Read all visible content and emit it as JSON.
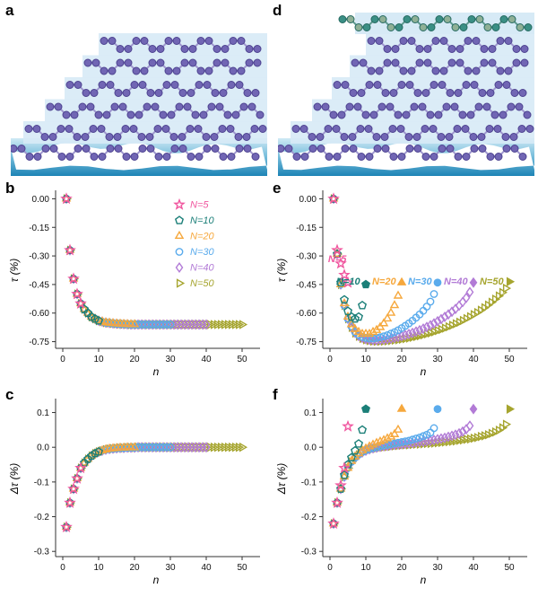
{
  "figure": {
    "panels": {
      "a": "a",
      "b": "b",
      "c": "c",
      "d": "d",
      "e": "e",
      "f": "f"
    }
  },
  "colors": {
    "axis": "#333333",
    "tick_text": "#111111",
    "slab": "#d7eaf6",
    "atom": "#7166b4",
    "atom_stroke": "#4d4390",
    "bond": "#9f97cf",
    "hetero_atom": "#3b8f85",
    "hetero_atom2": "#8fb096",
    "hetero_stroke": "#256a61",
    "hetero_bond": "#5f9a90",
    "sea_top": "#cfe9f5",
    "sea_mid": "#7cc0dd",
    "sea_bottom": "#1d84b6",
    "substrate": "#ffffff"
  },
  "series_meta": [
    {
      "key": "N5",
      "label": "N=5",
      "color": "#f0569f",
      "marker": "star",
      "N": 5
    },
    {
      "key": "N10",
      "label": "N=10",
      "color": "#1b7f78",
      "marker": "pentagon",
      "N": 10
    },
    {
      "key": "N20",
      "label": "N=20",
      "color": "#f6a83d",
      "marker": "triangle-up",
      "N": 20
    },
    {
      "key": "N30",
      "label": "N=30",
      "color": "#5aabec",
      "marker": "circle",
      "N": 30
    },
    {
      "key": "N40",
      "label": "N=40",
      "color": "#b27bd6",
      "marker": "diamond",
      "N": 40
    },
    {
      "key": "N50",
      "label": "N=50",
      "color": "#a6a52f",
      "marker": "triangle-right",
      "N": 50
    }
  ],
  "chart_data": [
    {
      "id": "chart-b",
      "panel": "b",
      "type": "scatter",
      "xlabel": "n",
      "ylabel": "τ (%)",
      "xlim": [
        -2,
        54
      ],
      "ylim": [
        -0.785,
        0.035
      ],
      "xticks": [
        0,
        10,
        20,
        30,
        40,
        50
      ],
      "xtick_labels": [
        "0",
        "10",
        "20",
        "30",
        "40",
        "50"
      ],
      "yticks": [
        0,
        -0.15,
        -0.3,
        -0.45,
        -0.6,
        -0.75
      ],
      "ytick_labels": [
        "0.00",
        "-0.15",
        "-0.30",
        "-0.45",
        "-0.60",
        "-0.75"
      ],
      "legend": true,
      "mode": "shared",
      "x_start": 1,
      "x_step": 1,
      "shared_y": [
        0,
        -0.27,
        -0.42,
        -0.5,
        -0.55,
        -0.58,
        -0.6,
        -0.62,
        -0.63,
        -0.64,
        -0.645,
        -0.65,
        -0.652,
        -0.654,
        -0.656,
        -0.657,
        -0.658,
        -0.659,
        -0.66,
        -0.66,
        -0.66,
        -0.66,
        -0.66,
        -0.66,
        -0.66,
        -0.66,
        -0.66,
        -0.66,
        -0.66,
        -0.66,
        -0.66,
        -0.66,
        -0.66,
        -0.66,
        -0.66,
        -0.66,
        -0.66,
        -0.66,
        -0.66,
        -0.66,
        -0.66,
        -0.66,
        -0.66,
        -0.66,
        -0.66,
        -0.66,
        -0.66,
        -0.66,
        -0.66,
        -0.66
      ],
      "series": [
        {
          "key": "N5",
          "last_filled": false
        },
        {
          "key": "N10",
          "last_filled": false
        },
        {
          "key": "N20",
          "last_filled": false
        },
        {
          "key": "N30",
          "last_filled": false
        },
        {
          "key": "N40",
          "last_filled": false
        },
        {
          "key": "N50",
          "last_filled": false
        }
      ]
    },
    {
      "id": "chart-e",
      "panel": "e",
      "type": "scatter",
      "xlabel": "n",
      "ylabel": "τ (%)",
      "xlim": [
        -2,
        54
      ],
      "ylim": [
        -0.785,
        0.035
      ],
      "xticks": [
        0,
        10,
        20,
        30,
        40,
        50
      ],
      "xtick_labels": [
        "0",
        "10",
        "20",
        "30",
        "40",
        "50"
      ],
      "yticks": [
        0,
        -0.15,
        -0.3,
        -0.45,
        -0.6,
        -0.75
      ],
      "ytick_labels": [
        "0.00",
        "-0.15",
        "-0.30",
        "-0.45",
        "-0.60",
        "-0.75"
      ],
      "legend": false,
      "mode": "per",
      "x_start": 1,
      "x_step": 1,
      "labels": [
        {
          "text": "N=5",
          "color": "#f0569f",
          "x": 4.6,
          "y": -0.315
        },
        {
          "text": "N=10",
          "color": "#1b7f78",
          "x": 8.4,
          "y": -0.435
        },
        {
          "text": "N=20",
          "color": "#f6a83d",
          "x": 18.4,
          "y": -0.435
        },
        {
          "text": "N=30",
          "color": "#5aabec",
          "x": 28.4,
          "y": -0.435
        },
        {
          "text": "N=40",
          "color": "#b27bd6",
          "x": 38.4,
          "y": -0.435
        },
        {
          "text": "N=50",
          "color": "#a6a52f",
          "x": 48.4,
          "y": -0.435
        }
      ],
      "series": [
        {
          "key": "N5",
          "last_filled": false,
          "y": [
            0,
            -0.27,
            -0.34,
            -0.4,
            -0.44
          ]
        },
        {
          "key": "N10",
          "last_filled": true,
          "y": [
            0,
            -0.29,
            -0.44,
            -0.53,
            -0.59,
            -0.62,
            -0.63,
            -0.62,
            -0.56,
            -0.45
          ]
        },
        {
          "key": "N20",
          "last_filled": true,
          "y": [
            0,
            -0.29,
            -0.45,
            -0.55,
            -0.62,
            -0.66,
            -0.685,
            -0.7,
            -0.71,
            -0.71,
            -0.71,
            -0.7,
            -0.69,
            -0.675,
            -0.655,
            -0.63,
            -0.6,
            -0.56,
            -0.51,
            -0.44
          ]
        },
        {
          "key": "N30",
          "last_filled": true,
          "y": [
            0,
            -0.29,
            -0.45,
            -0.56,
            -0.63,
            -0.67,
            -0.7,
            -0.715,
            -0.725,
            -0.73,
            -0.733,
            -0.733,
            -0.73,
            -0.727,
            -0.722,
            -0.716,
            -0.708,
            -0.7,
            -0.69,
            -0.679,
            -0.667,
            -0.654,
            -0.64,
            -0.624,
            -0.607,
            -0.588,
            -0.566,
            -0.54,
            -0.5,
            -0.44
          ]
        },
        {
          "key": "N40",
          "last_filled": true,
          "y": [
            0,
            -0.29,
            -0.45,
            -0.56,
            -0.63,
            -0.675,
            -0.703,
            -0.72,
            -0.73,
            -0.737,
            -0.74,
            -0.742,
            -0.742,
            -0.741,
            -0.739,
            -0.737,
            -0.734,
            -0.73,
            -0.726,
            -0.721,
            -0.716,
            -0.71,
            -0.704,
            -0.697,
            -0.69,
            -0.682,
            -0.673,
            -0.664,
            -0.654,
            -0.643,
            -0.632,
            -0.62,
            -0.607,
            -0.593,
            -0.578,
            -0.561,
            -0.542,
            -0.52,
            -0.49,
            -0.44
          ]
        },
        {
          "key": "N50",
          "last_filled": true,
          "y": [
            0,
            -0.29,
            -0.45,
            -0.56,
            -0.63,
            -0.675,
            -0.705,
            -0.722,
            -0.733,
            -0.74,
            -0.744,
            -0.747,
            -0.748,
            -0.748,
            -0.747,
            -0.746,
            -0.744,
            -0.742,
            -0.74,
            -0.737,
            -0.734,
            -0.731,
            -0.727,
            -0.723,
            -0.719,
            -0.714,
            -0.709,
            -0.704,
            -0.698,
            -0.692,
            -0.686,
            -0.679,
            -0.672,
            -0.664,
            -0.656,
            -0.648,
            -0.639,
            -0.629,
            -0.619,
            -0.608,
            -0.597,
            -0.585,
            -0.572,
            -0.558,
            -0.543,
            -0.527,
            -0.51,
            -0.492,
            -0.47,
            -0.435
          ]
        }
      ]
    },
    {
      "id": "chart-c",
      "panel": "c",
      "type": "scatter",
      "xlabel": "n",
      "ylabel": "Δτ (%)",
      "xlim": [
        -2,
        54
      ],
      "ylim": [
        -0.315,
        0.135
      ],
      "xticks": [
        0,
        10,
        20,
        30,
        40,
        50
      ],
      "xtick_labels": [
        "0",
        "10",
        "20",
        "30",
        "40",
        "50"
      ],
      "yticks": [
        0.1,
        0,
        -0.1,
        -0.2,
        -0.3
      ],
      "ytick_labels": [
        "0.1",
        "0.0",
        "-0.1",
        "-0.2",
        "-0.3"
      ],
      "legend": false,
      "mode": "shared",
      "x_start": 1,
      "x_step": 1,
      "shared_y": [
        -0.23,
        -0.16,
        -0.12,
        -0.09,
        -0.06,
        -0.045,
        -0.034,
        -0.025,
        -0.018,
        -0.013,
        -0.01,
        -0.007,
        -0.005,
        -0.004,
        -0.003,
        -0.002,
        -0.002,
        -0.001,
        -0.001,
        -0.001,
        0,
        0,
        0,
        0,
        0,
        0,
        0,
        0,
        0,
        0,
        0,
        0,
        0,
        0,
        0,
        0,
        0,
        0,
        0,
        0,
        0,
        0,
        0,
        0,
        0,
        0,
        0,
        0,
        0,
        0
      ],
      "series": [
        {
          "key": "N5",
          "last_filled": false
        },
        {
          "key": "N10",
          "last_filled": false
        },
        {
          "key": "N20",
          "last_filled": false
        },
        {
          "key": "N30",
          "last_filled": false
        },
        {
          "key": "N40",
          "last_filled": false
        },
        {
          "key": "N50",
          "last_filled": false
        }
      ]
    },
    {
      "id": "chart-f",
      "panel": "f",
      "type": "scatter",
      "xlabel": "n",
      "ylabel": "Δτ (%)",
      "xlim": [
        -2,
        54
      ],
      "ylim": [
        -0.315,
        0.135
      ],
      "xticks": [
        0,
        10,
        20,
        30,
        40,
        50
      ],
      "xtick_labels": [
        "0",
        "10",
        "20",
        "30",
        "40",
        "50"
      ],
      "yticks": [
        0.1,
        0,
        -0.1,
        -0.2,
        -0.3
      ],
      "ytick_labels": [
        "0.1",
        "0.0",
        "-0.1",
        "-0.2",
        "-0.3"
      ],
      "legend": false,
      "mode": "per",
      "x_start": 1,
      "x_step": 1,
      "series": [
        {
          "key": "N5",
          "last_filled": false,
          "y": [
            -0.22,
            -0.16,
            -0.11,
            -0.06,
            0.06
          ]
        },
        {
          "key": "N10",
          "last_filled": true,
          "y": [
            -0.22,
            -0.16,
            -0.12,
            -0.08,
            -0.05,
            -0.03,
            -0.01,
            0.01,
            0.05,
            0.11
          ]
        },
        {
          "key": "N20",
          "last_filled": true,
          "y": [
            -0.22,
            -0.16,
            -0.12,
            -0.085,
            -0.06,
            -0.04,
            -0.027,
            -0.018,
            -0.01,
            -0.004,
            0.002,
            0.007,
            0.012,
            0.016,
            0.02,
            0.025,
            0.03,
            0.037,
            0.05,
            0.11
          ]
        },
        {
          "key": "N30",
          "last_filled": true,
          "y": [
            -0.22,
            -0.16,
            -0.12,
            -0.085,
            -0.06,
            -0.042,
            -0.03,
            -0.021,
            -0.014,
            -0.009,
            -0.005,
            -0.002,
            0,
            0.003,
            0.005,
            0.007,
            0.009,
            0.011,
            0.013,
            0.015,
            0.017,
            0.019,
            0.022,
            0.025,
            0.028,
            0.032,
            0.036,
            0.042,
            0.055,
            0.11
          ]
        },
        {
          "key": "N40",
          "last_filled": true,
          "y": [
            -0.22,
            -0.16,
            -0.12,
            -0.085,
            -0.06,
            -0.042,
            -0.03,
            -0.022,
            -0.015,
            -0.01,
            -0.006,
            -0.003,
            -0.001,
            0.001,
            0.003,
            0.004,
            0.006,
            0.007,
            0.008,
            0.009,
            0.01,
            0.011,
            0.012,
            0.014,
            0.015,
            0.016,
            0.018,
            0.019,
            0.021,
            0.023,
            0.025,
            0.027,
            0.03,
            0.033,
            0.036,
            0.04,
            0.045,
            0.052,
            0.062,
            0.11
          ]
        },
        {
          "key": "N50",
          "last_filled": true,
          "y": [
            -0.22,
            -0.16,
            -0.12,
            -0.085,
            -0.06,
            -0.042,
            -0.03,
            -0.022,
            -0.015,
            -0.011,
            -0.007,
            -0.004,
            -0.002,
            0,
            0.001,
            0.002,
            0.003,
            0.004,
            0.005,
            0.006,
            0.007,
            0.007,
            0.008,
            0.009,
            0.009,
            0.01,
            0.011,
            0.011,
            0.012,
            0.013,
            0.014,
            0.015,
            0.016,
            0.017,
            0.018,
            0.02,
            0.021,
            0.023,
            0.024,
            0.026,
            0.028,
            0.031,
            0.033,
            0.036,
            0.04,
            0.044,
            0.049,
            0.056,
            0.066,
            0.11
          ]
        }
      ]
    }
  ],
  "illustrations": {
    "a": {
      "slab_lefts": [
        98,
        80,
        60,
        38,
        14
      ],
      "hetero": false
    },
    "d": {
      "slab_lefts": [
        98,
        80,
        60,
        38,
        14
      ],
      "hetero": true,
      "hetero_left": 86
    }
  }
}
